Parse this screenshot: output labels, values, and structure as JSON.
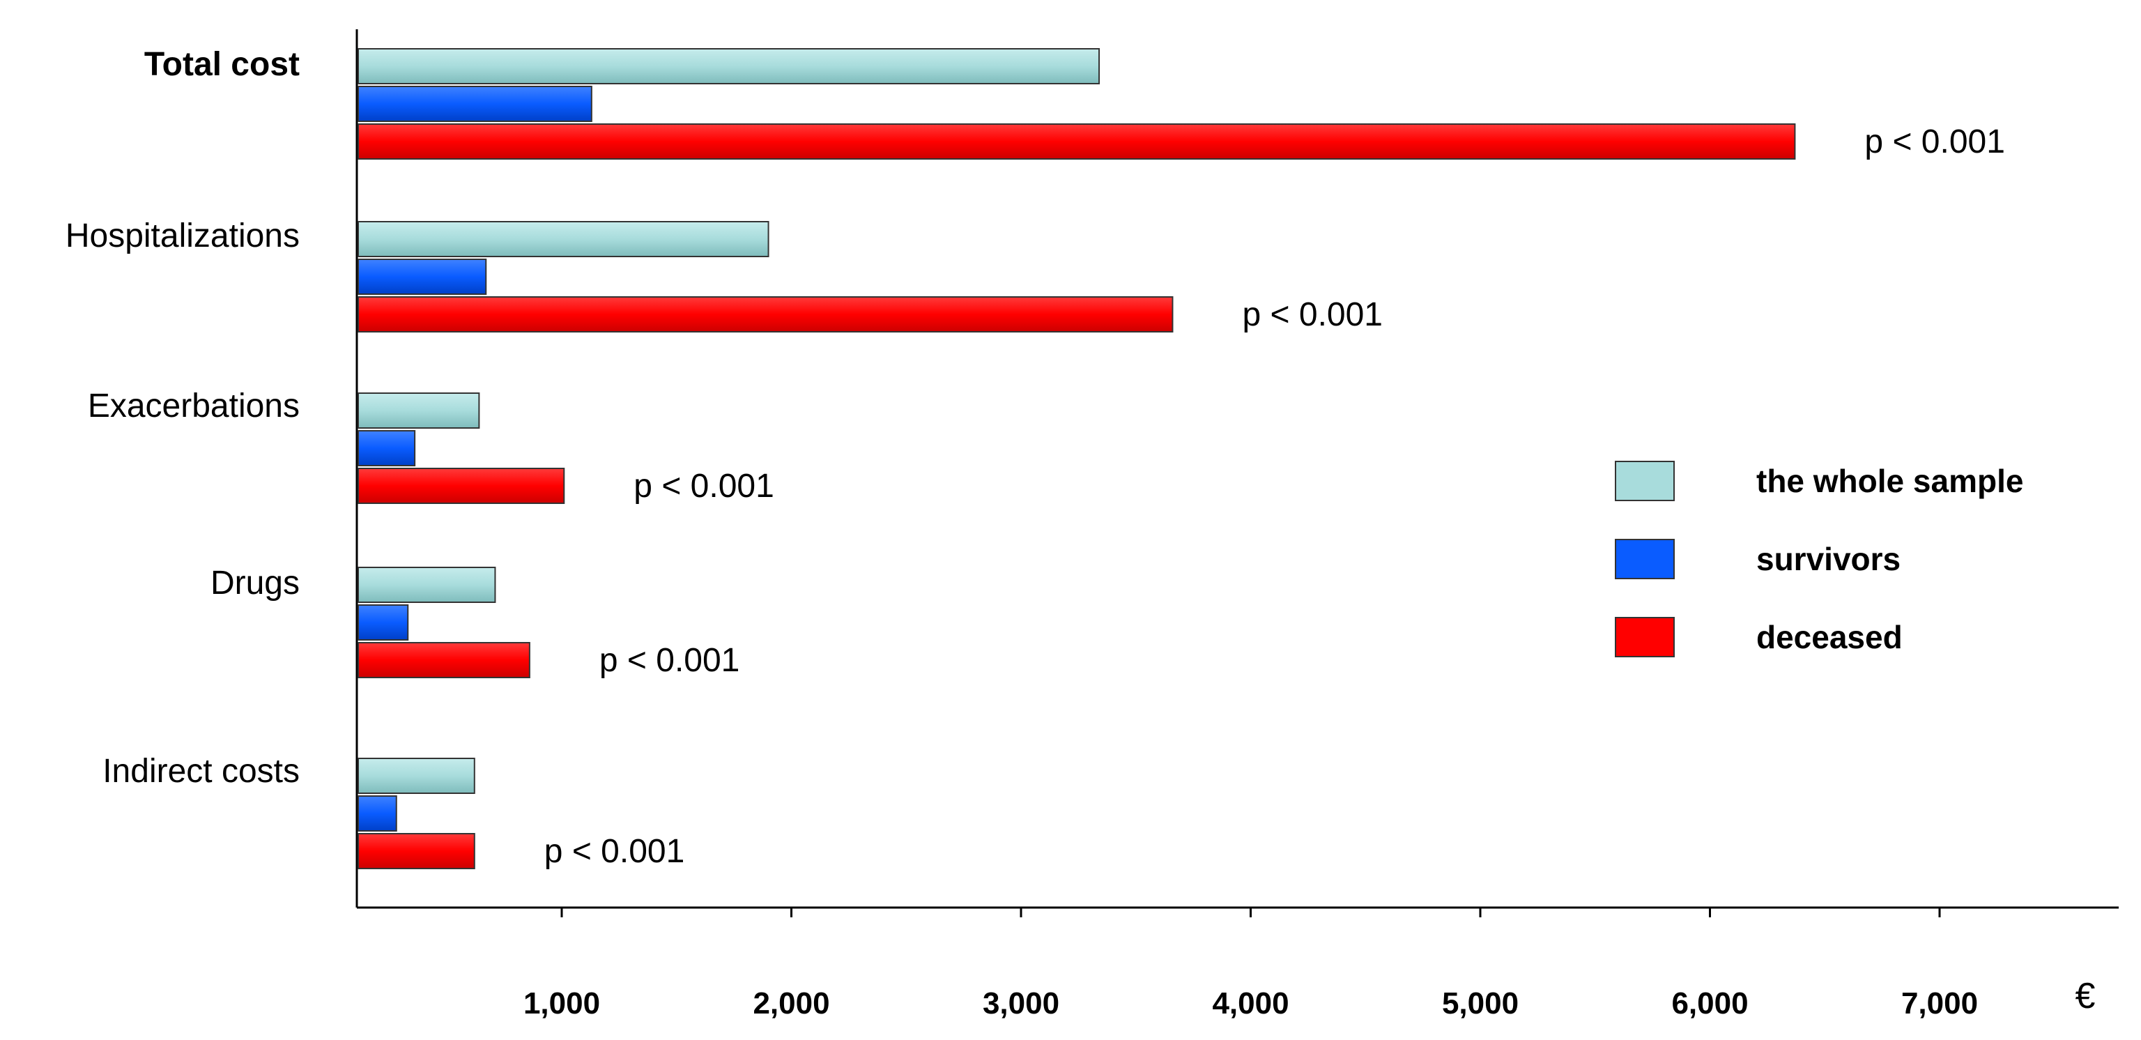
{
  "chart_data": {
    "type": "bar",
    "orientation": "horizontal",
    "categories": [
      "Total cost",
      "Hospitalizations",
      "Exacerbations",
      "Drugs",
      "Indirect costs"
    ],
    "series": [
      {
        "name": "the whole sample",
        "color": "#a8dcdc",
        "values": [
          3340,
          1900,
          640,
          710,
          620
        ]
      },
      {
        "name": "survivors",
        "color": "#0a5cff",
        "values": [
          1130,
          670,
          360,
          330,
          280
        ]
      },
      {
        "name": "deceased",
        "color": "#ff0000",
        "values": [
          6370,
          3660,
          1010,
          860,
          620
        ]
      }
    ],
    "annotations": [
      "p < 0.001",
      "p < 0.001",
      "p < 0.001",
      "p < 0.001",
      "p < 0.001"
    ],
    "x_ticks": [
      1000,
      2000,
      3000,
      4000,
      5000,
      6000,
      7000
    ],
    "x_tick_labels": [
      "1,000",
      "2,000",
      "3,000",
      "4,000",
      "5,000",
      "6,000",
      "7,000"
    ],
    "x_unit": "€",
    "xlim": [
      100,
      7700
    ],
    "bold_categories": [
      "Total cost"
    ],
    "legend_position": "right",
    "grid": false
  }
}
